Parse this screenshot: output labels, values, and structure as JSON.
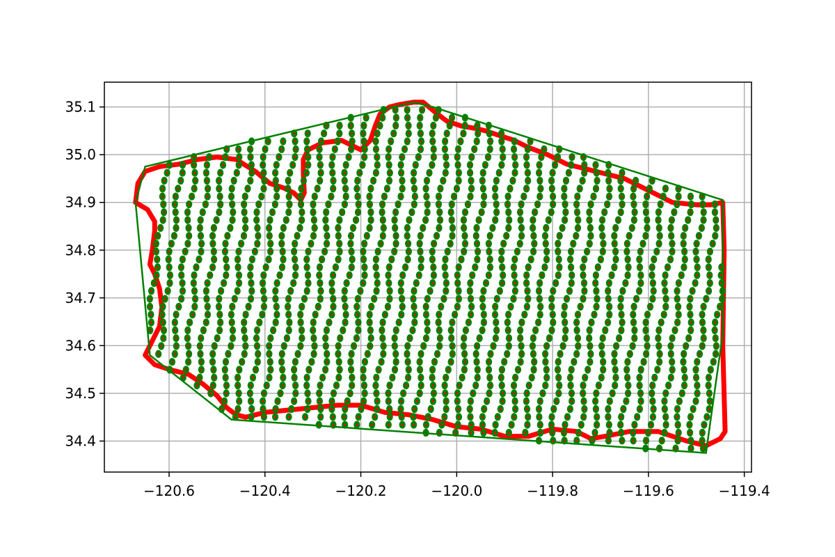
{
  "chart_data": {
    "type": "scatter",
    "title": "",
    "xlabel": "",
    "ylabel": "",
    "xlim": [
      -120.735,
      -119.385
    ],
    "ylim": [
      34.335,
      35.152
    ],
    "grid": true,
    "legend": "none",
    "x_ticks": [
      -120.6,
      -120.4,
      -120.2,
      -120.0,
      -119.8,
      -119.6,
      -119.4
    ],
    "x_tick_labels": [
      "−120.6",
      "−120.4",
      "−120.2",
      "−120.0",
      "−119.8",
      "−119.6",
      "−119.4"
    ],
    "y_ticks": [
      34.4,
      34.5,
      34.6,
      34.7,
      34.8,
      34.9,
      35.0,
      35.1
    ],
    "y_tick_labels": [
      "34.4",
      "34.5",
      "34.6",
      "34.7",
      "34.8",
      "34.9",
      "35.0",
      "35.1"
    ],
    "colors": {
      "boundary": "#ff0000",
      "hull": "#008000",
      "points_outer": "#008000",
      "points_inner": "#ff0000",
      "grid": "#b0b0b0"
    },
    "series": [
      {
        "kind": "region-boundary",
        "x": [
          -120.67,
          -120.665,
          -120.65,
          -120.62,
          -120.58,
          -120.54,
          -120.5,
          -120.46,
          -120.42,
          -120.39,
          -120.36,
          -120.34,
          -120.325,
          -120.318,
          -120.32,
          -120.32,
          -120.31,
          -120.28,
          -120.24,
          -120.2,
          -120.18,
          -120.17,
          -120.16,
          -120.14,
          -120.12,
          -120.09,
          -120.07,
          -120.04,
          -120.02,
          -119.99,
          -119.96,
          -119.94,
          -119.91,
          -119.88,
          -119.85,
          -119.81,
          -119.77,
          -119.73,
          -119.69,
          -119.65,
          -119.62,
          -119.58,
          -119.55,
          -119.5,
          -119.47,
          -119.445,
          -119.442,
          -119.445,
          -119.44,
          -119.45,
          -119.48,
          -119.52,
          -119.55,
          -119.58,
          -119.6,
          -119.64,
          -119.69,
          -119.72,
          -119.75,
          -119.8,
          -119.85,
          -119.9,
          -119.95,
          -120.0,
          -120.05,
          -120.1,
          -120.15,
          -120.2,
          -120.25,
          -120.3,
          -120.35,
          -120.4,
          -120.44,
          -120.46,
          -120.48,
          -120.5,
          -120.53,
          -120.56,
          -120.6,
          -120.63,
          -120.65,
          -120.64,
          -120.62,
          -120.615,
          -120.62,
          -120.63,
          -120.64,
          -120.635,
          -120.63,
          -120.63,
          -120.645,
          -120.67
        ],
        "y": [
          34.9,
          34.94,
          34.965,
          34.975,
          34.98,
          34.99,
          34.995,
          34.99,
          34.965,
          34.94,
          34.93,
          34.92,
          34.905,
          34.92,
          34.96,
          34.99,
          35.01,
          35.025,
          35.03,
          35.01,
          35.03,
          35.06,
          35.085,
          35.1,
          35.105,
          35.11,
          35.11,
          35.085,
          35.07,
          35.06,
          35.055,
          35.05,
          35.04,
          35.03,
          35.015,
          35.0,
          34.98,
          34.97,
          34.96,
          34.95,
          34.935,
          34.915,
          34.9,
          34.895,
          34.895,
          34.9,
          34.8,
          34.6,
          34.42,
          34.405,
          34.39,
          34.4,
          34.41,
          34.42,
          34.42,
          34.42,
          34.41,
          34.405,
          34.42,
          34.425,
          34.41,
          34.41,
          34.425,
          34.43,
          34.445,
          34.455,
          34.46,
          34.475,
          34.475,
          34.47,
          34.465,
          34.46,
          34.45,
          34.455,
          34.47,
          34.495,
          34.52,
          34.54,
          34.55,
          34.56,
          34.58,
          34.6,
          34.64,
          34.68,
          34.72,
          34.75,
          34.77,
          34.8,
          34.84,
          34.86,
          34.885,
          34.9
        ]
      },
      {
        "kind": "convex-hull",
        "x": [
          -120.67,
          -120.65,
          -120.09,
          -120.05,
          -119.445,
          -119.445,
          -119.48,
          -120.47,
          -120.64,
          -120.67
        ],
        "y": [
          34.9,
          34.975,
          35.11,
          35.1,
          34.905,
          34.625,
          34.375,
          34.445,
          34.58,
          34.9
        ]
      }
    ],
    "point_lines": {
      "kind": "survey-line-points",
      "x_start": -120.67,
      "x_end": -119.46,
      "x_step": 0.0289,
      "y_step": 0.0165
    }
  }
}
